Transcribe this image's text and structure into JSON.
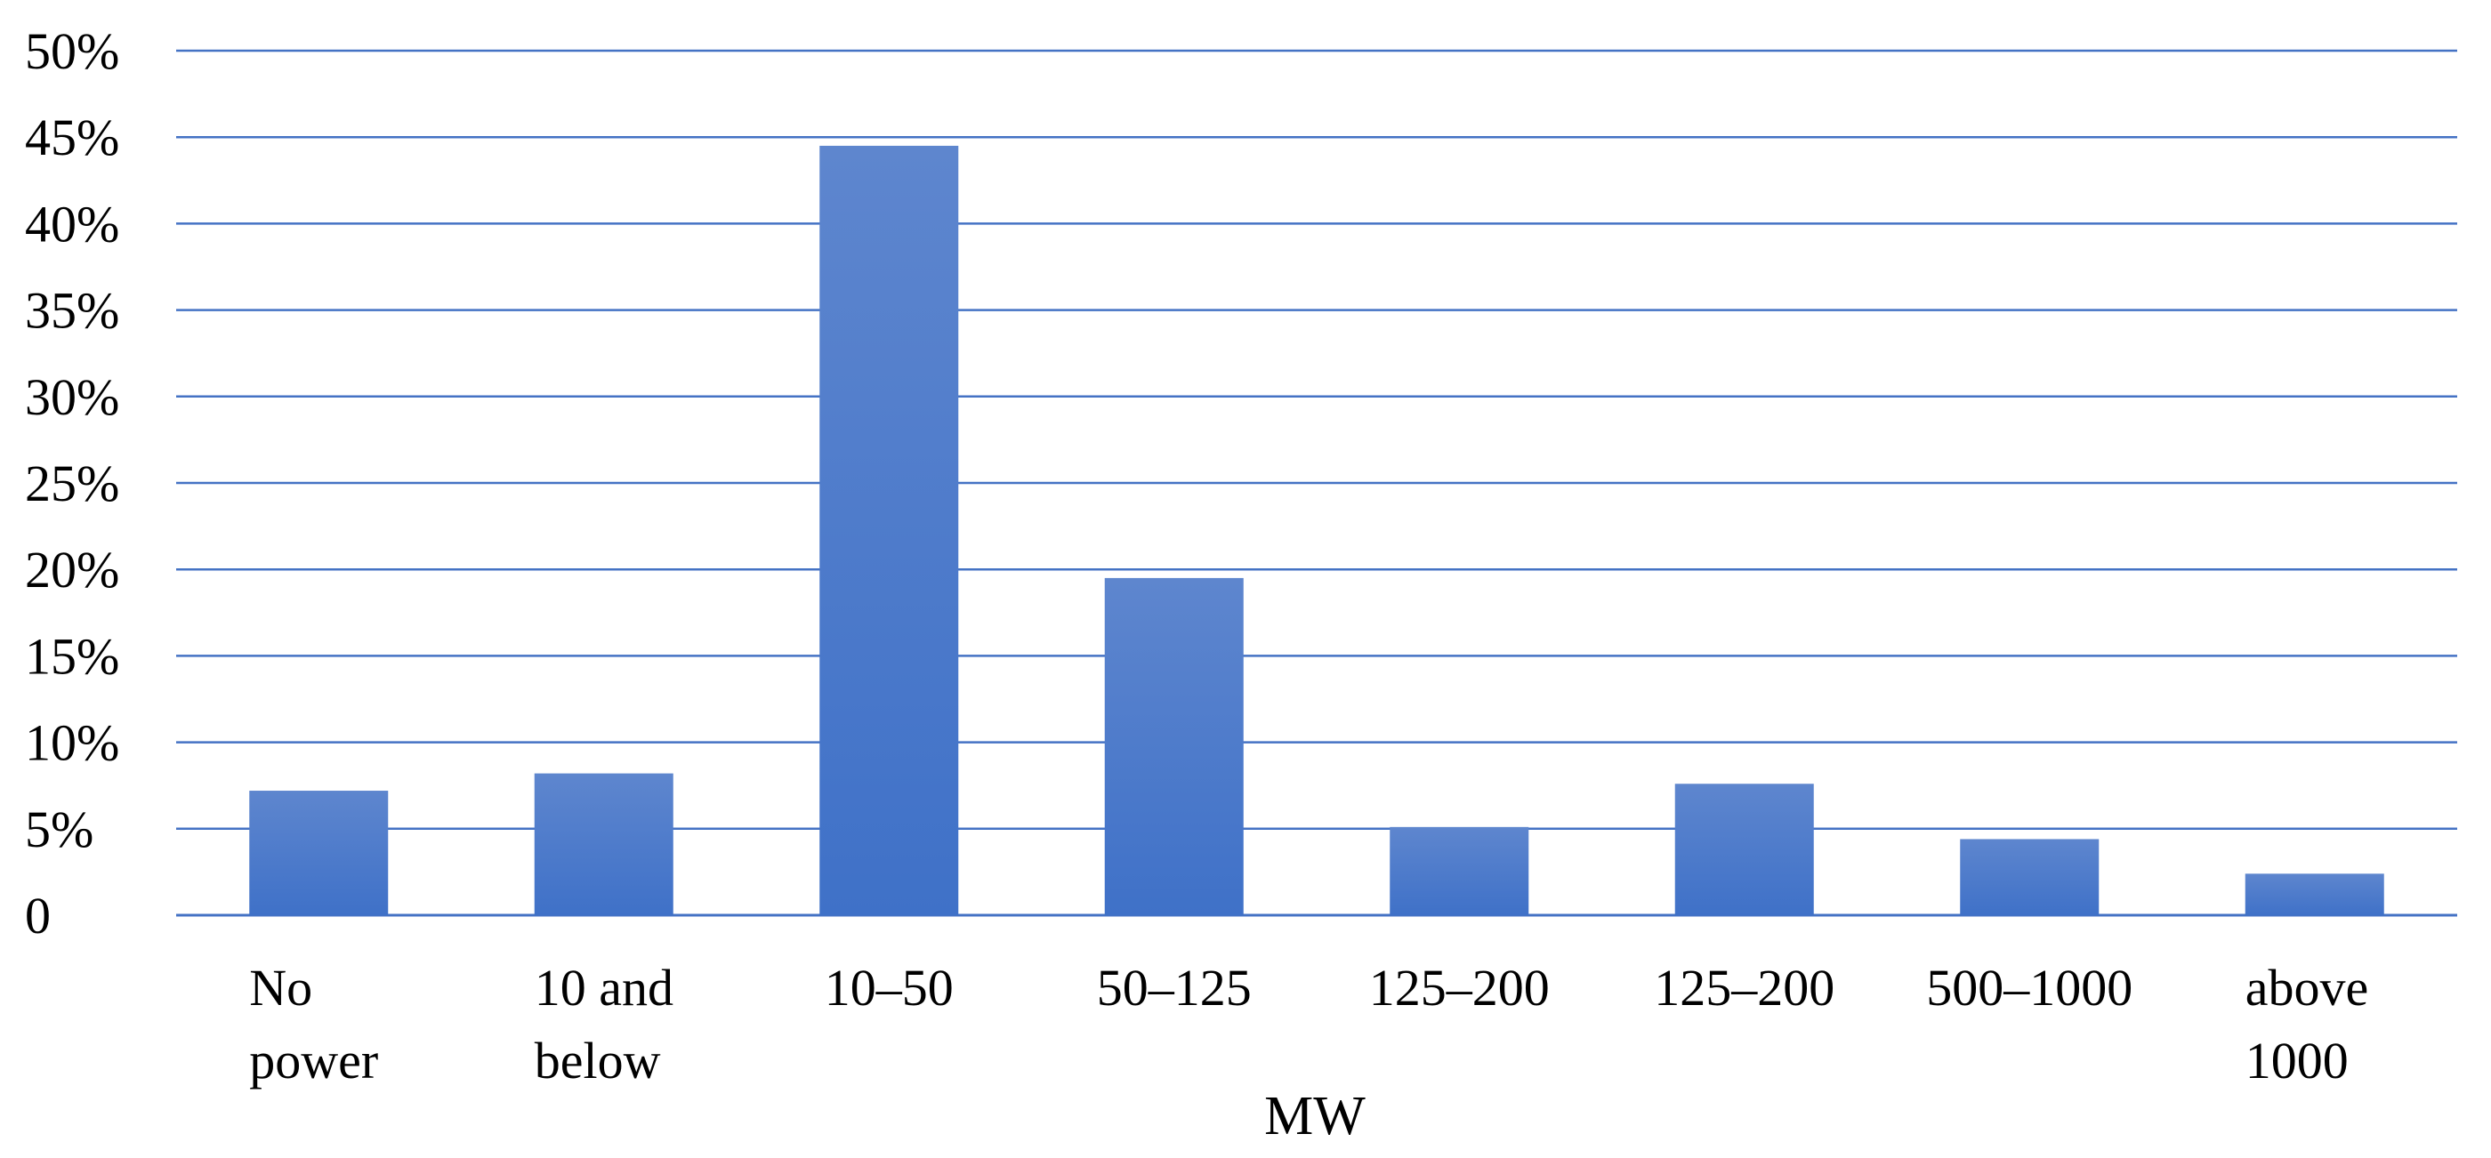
{
  "chart_data": {
    "type": "bar",
    "xlabel": "MW",
    "ylabel": "",
    "ylim": [
      0,
      50
    ],
    "grid": true,
    "yticks": [
      "0",
      "5%",
      "10%",
      "15%",
      "20%",
      "25%",
      "30%",
      "35%",
      "40%",
      "45%",
      "50%"
    ],
    "categories": [
      [
        "No",
        "power"
      ],
      [
        "10 and",
        "below"
      ],
      [
        "10–50"
      ],
      [
        "50–125"
      ],
      [
        "125–200"
      ],
      [
        "125–200"
      ],
      [
        "500–1000"
      ],
      [
        "above",
        "1000"
      ]
    ],
    "values": [
      7.2,
      8.2,
      44.5,
      19.5,
      5.1,
      7.6,
      4.4,
      2.4
    ],
    "bar_color": "#3F71C8",
    "bar_color_top": "#5E86CE",
    "gridline_color": "#4472C4"
  }
}
